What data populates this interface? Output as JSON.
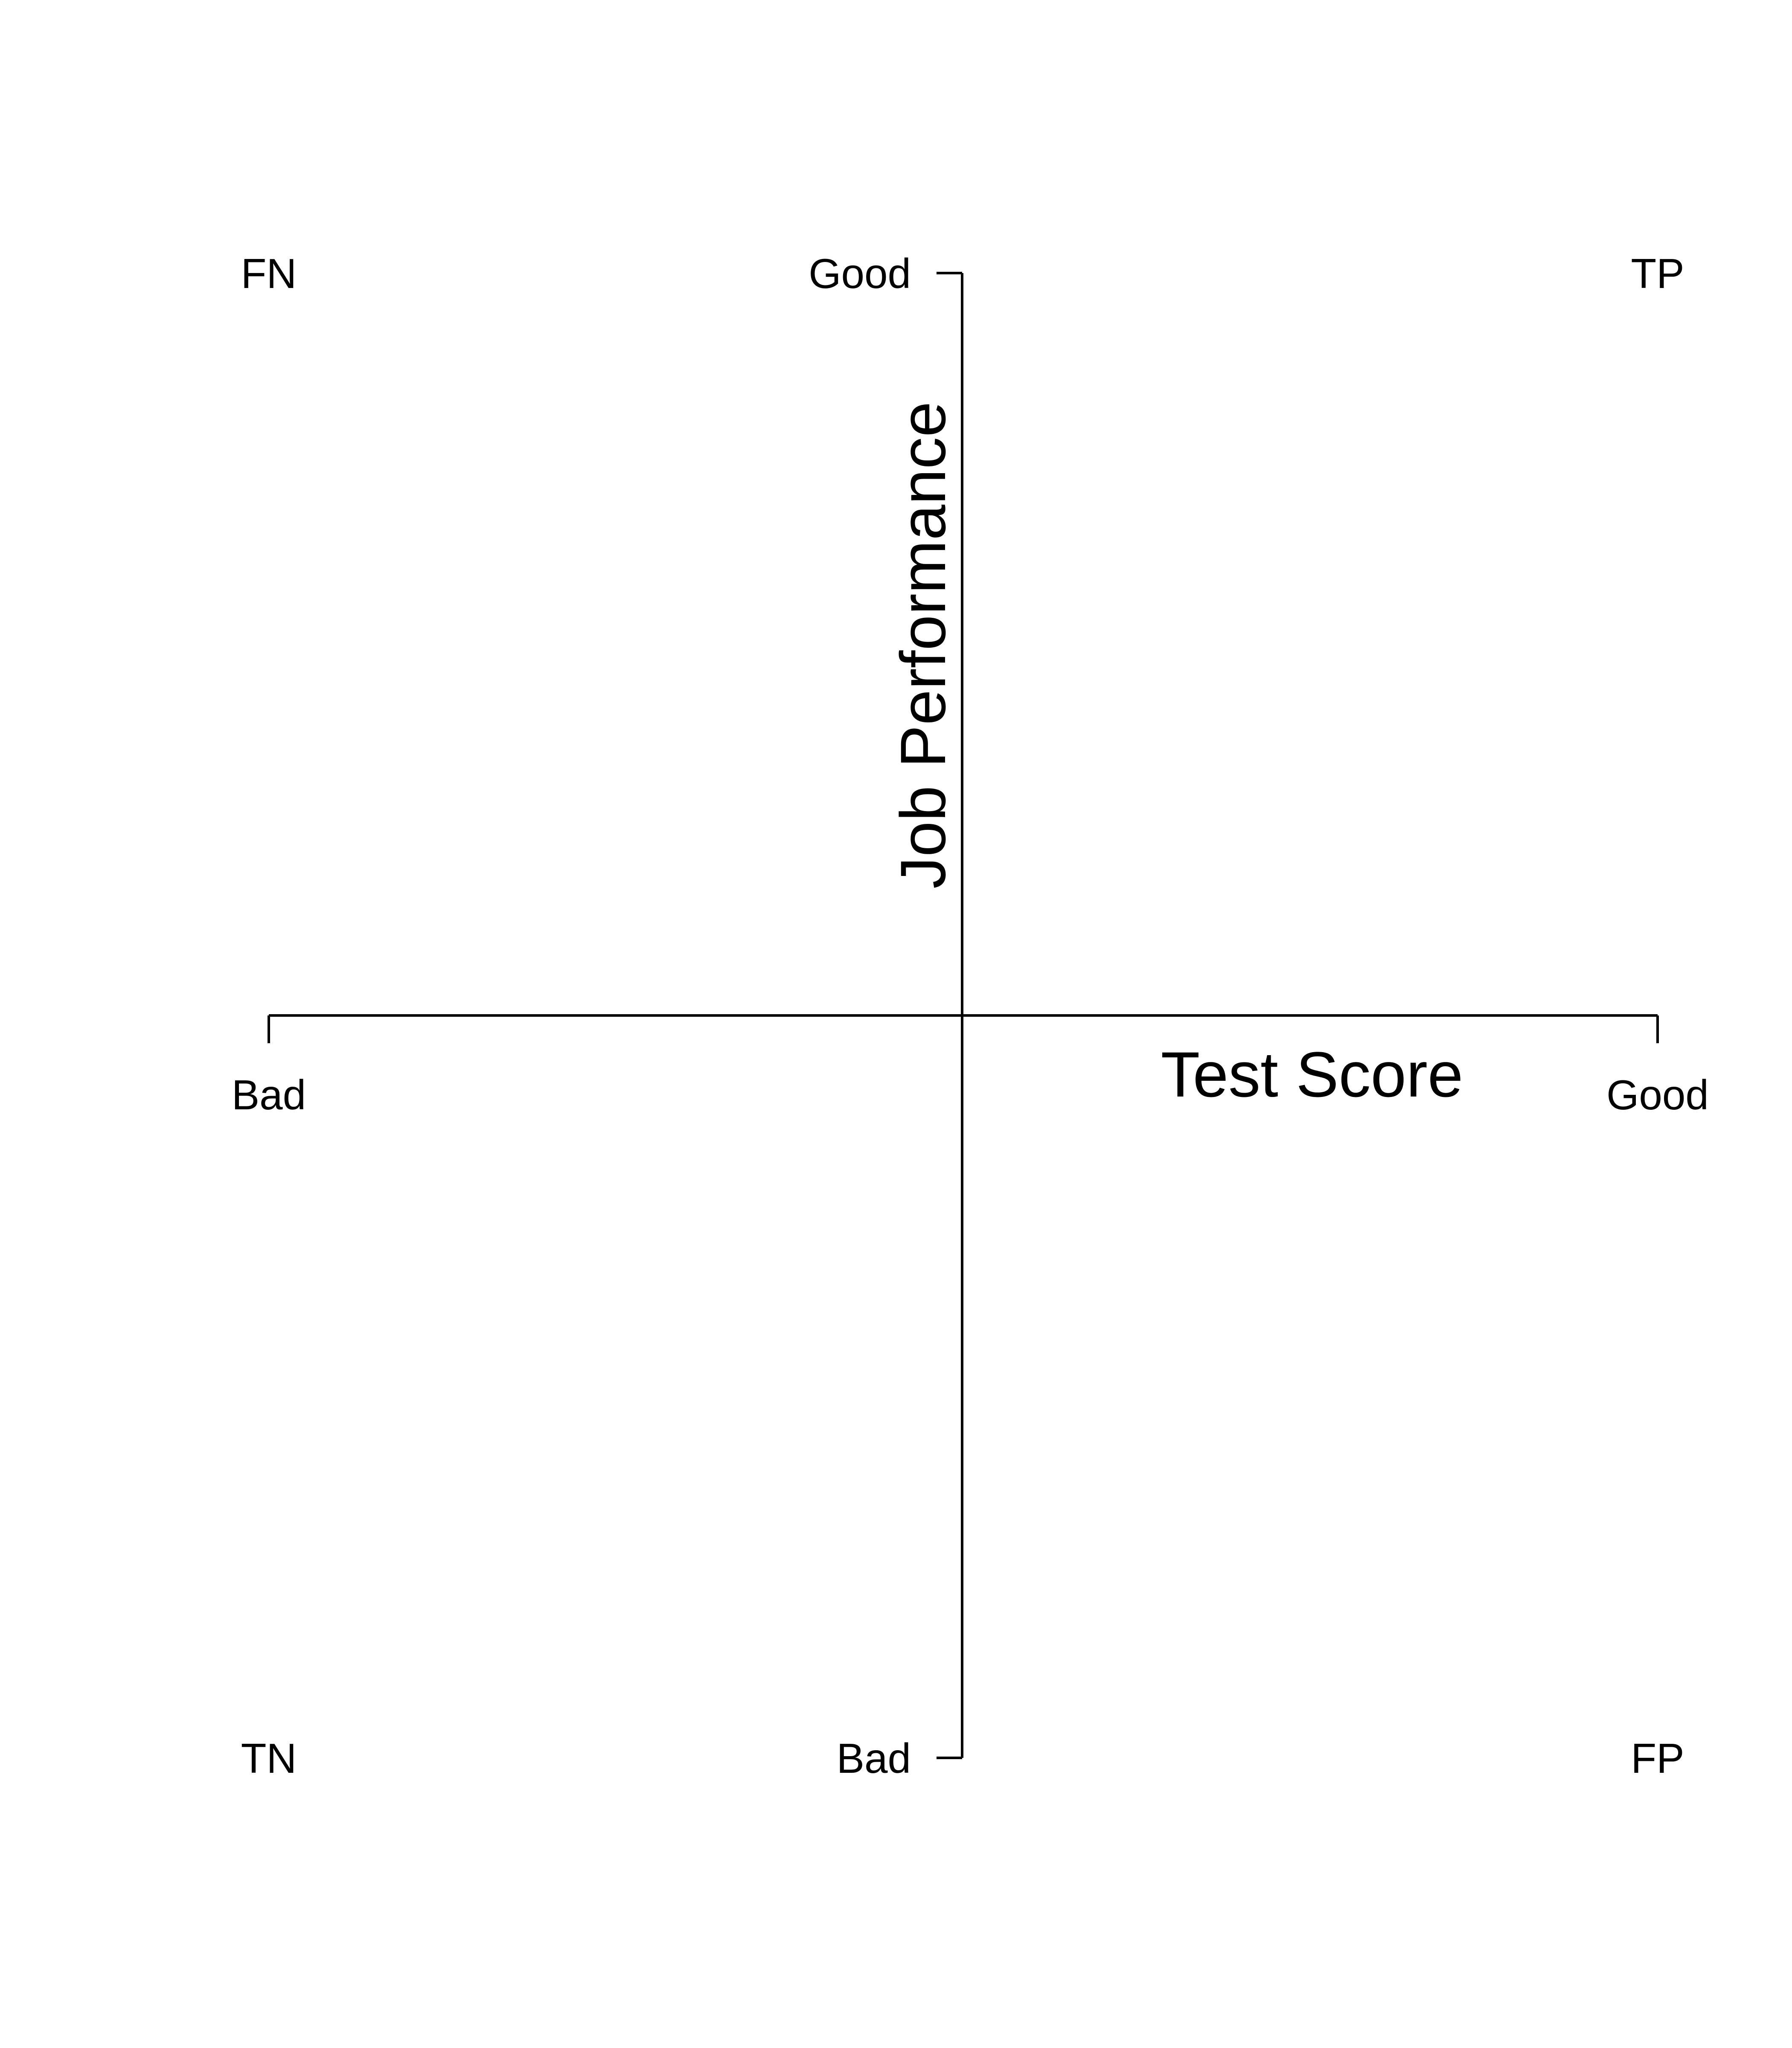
{
  "diagram": {
    "type": "quadrant",
    "x_axis": {
      "title": "Test Score",
      "low_label": "Bad",
      "high_label": "Good"
    },
    "y_axis": {
      "title": "Job Performance",
      "low_label": "Bad",
      "high_label": "Good"
    },
    "quadrants": {
      "top_left": "FN",
      "top_right": "TP",
      "bottom_left": "TN",
      "bottom_right": "FP"
    },
    "colors": {
      "line": "#000000",
      "background": "#ffffff"
    }
  }
}
